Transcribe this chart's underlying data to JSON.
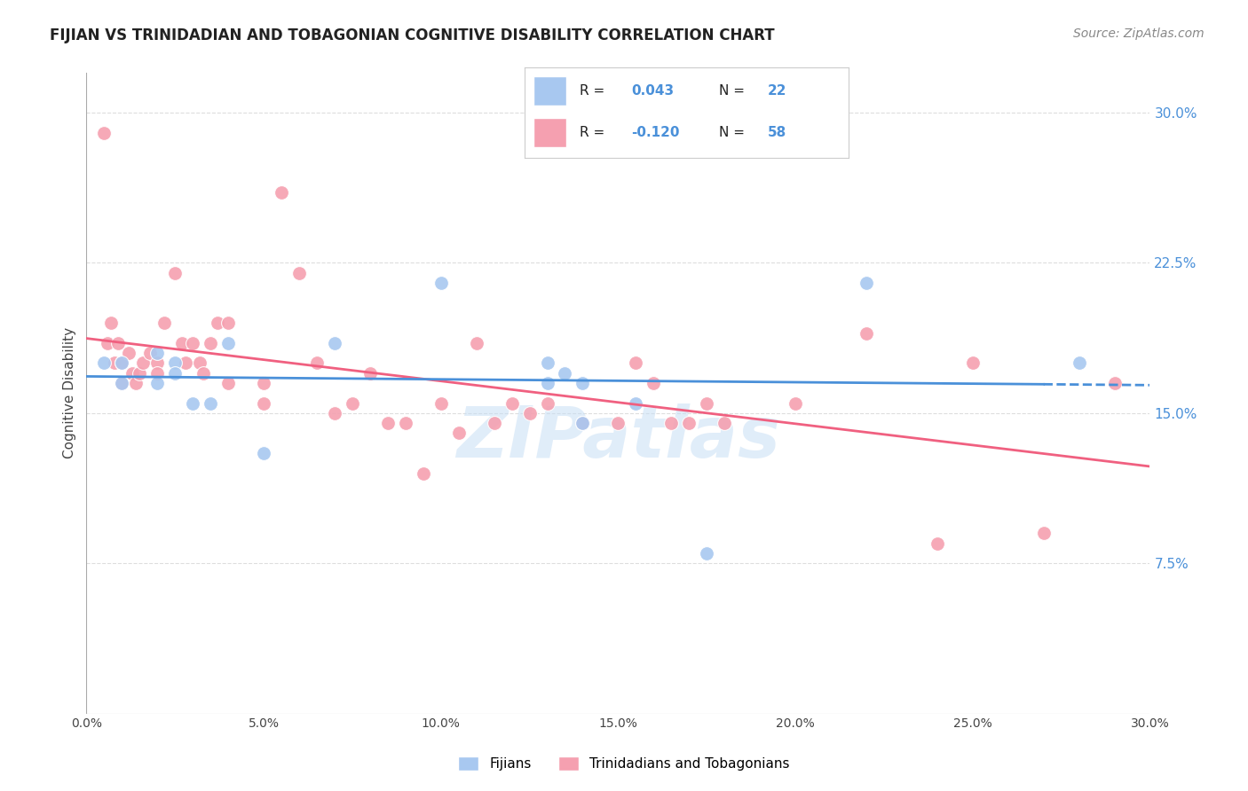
{
  "title": "FIJIAN VS TRINIDADIAN AND TOBAGONIAN COGNITIVE DISABILITY CORRELATION CHART",
  "source": "Source: ZipAtlas.com",
  "ylabel": "Cognitive Disability",
  "y_ticks": [
    0.0,
    0.075,
    0.15,
    0.225,
    0.3
  ],
  "y_tick_labels": [
    "",
    "7.5%",
    "15.0%",
    "22.5%",
    "30.0%"
  ],
  "x_range": [
    0.0,
    0.3
  ],
  "y_range": [
    0.0,
    0.32
  ],
  "fijian_color": "#a8c8f0",
  "trinidadian_color": "#f5a0b0",
  "fijian_line_color": "#4a90d9",
  "trinidadian_line_color": "#f06080",
  "fijian_R": "0.043",
  "fijian_N": "22",
  "trinidadian_R": "-0.120",
  "trinidadian_N": "58",
  "legend_label_fijian": "Fijians",
  "legend_label_trinidadian": "Trinidadians and Tobagonians",
  "fijian_x": [
    0.005,
    0.01,
    0.01,
    0.02,
    0.02,
    0.025,
    0.025,
    0.03,
    0.035,
    0.04,
    0.05,
    0.07,
    0.1,
    0.13,
    0.13,
    0.135,
    0.14,
    0.14,
    0.155,
    0.175,
    0.22,
    0.28
  ],
  "fijian_y": [
    0.175,
    0.175,
    0.165,
    0.18,
    0.165,
    0.175,
    0.17,
    0.155,
    0.155,
    0.185,
    0.13,
    0.185,
    0.215,
    0.175,
    0.165,
    0.17,
    0.165,
    0.145,
    0.155,
    0.08,
    0.215,
    0.175
  ],
  "trinidadian_x": [
    0.005,
    0.006,
    0.007,
    0.008,
    0.009,
    0.01,
    0.01,
    0.012,
    0.013,
    0.014,
    0.015,
    0.016,
    0.018,
    0.02,
    0.02,
    0.022,
    0.025,
    0.027,
    0.028,
    0.03,
    0.032,
    0.033,
    0.035,
    0.037,
    0.04,
    0.04,
    0.05,
    0.05,
    0.055,
    0.06,
    0.065,
    0.07,
    0.075,
    0.08,
    0.085,
    0.09,
    0.095,
    0.1,
    0.105,
    0.11,
    0.115,
    0.12,
    0.125,
    0.13,
    0.14,
    0.15,
    0.155,
    0.16,
    0.165,
    0.17,
    0.175,
    0.18,
    0.2,
    0.22,
    0.24,
    0.25,
    0.27,
    0.29
  ],
  "trinidadian_y": [
    0.29,
    0.185,
    0.195,
    0.175,
    0.185,
    0.175,
    0.165,
    0.18,
    0.17,
    0.165,
    0.17,
    0.175,
    0.18,
    0.175,
    0.17,
    0.195,
    0.22,
    0.185,
    0.175,
    0.185,
    0.175,
    0.17,
    0.185,
    0.195,
    0.195,
    0.165,
    0.165,
    0.155,
    0.26,
    0.22,
    0.175,
    0.15,
    0.155,
    0.17,
    0.145,
    0.145,
    0.12,
    0.155,
    0.14,
    0.185,
    0.145,
    0.155,
    0.15,
    0.155,
    0.145,
    0.145,
    0.175,
    0.165,
    0.145,
    0.145,
    0.155,
    0.145,
    0.155,
    0.19,
    0.085,
    0.175,
    0.09,
    0.165
  ],
  "watermark": "ZIPatlas",
  "background_color": "#ffffff",
  "grid_color": "#dddddd",
  "accent_color": "#4a90d9"
}
